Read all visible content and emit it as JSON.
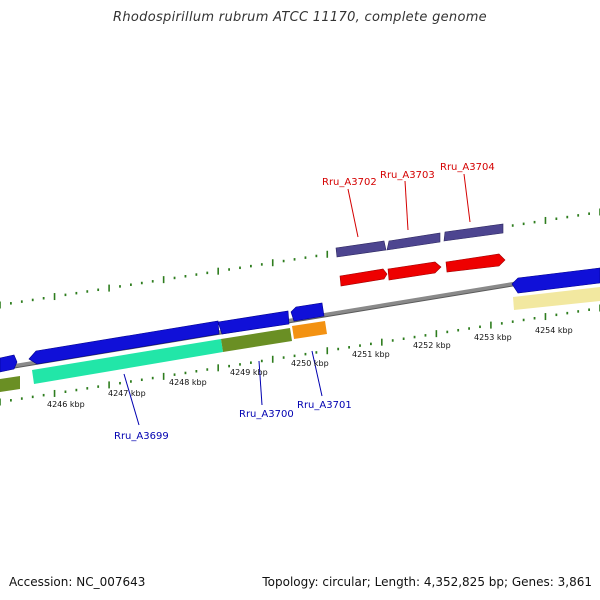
{
  "title": "Rhodospirillum rubrum ATCC 11170, complete genome",
  "footer": {
    "accession": "Accession: NC_007643",
    "topology": "Topology: circular; Length: 4,352,825 bp; Genes: 3,861"
  },
  "colors": {
    "backbone": "#8a8a8a",
    "tick": "#2e7d1e",
    "gene_blue": "#1010d8",
    "gene_red": "#ee0000",
    "gene_purple": "#4d4590",
    "label_red": "#d40000",
    "label_blue": "#0000b0",
    "bar_teal": "#22e6a8",
    "bar_olive": "#6a8f24",
    "bar_orange": "#f39212",
    "bar_cream": "#f2e8a0"
  },
  "kbp_labels": [
    "4246 kbp",
    "4247 kbp",
    "4248 kbp",
    "4249 kbp",
    "4250 kbp",
    "4251 kbp",
    "4252 kbp",
    "4253 kbp",
    "4254 kbp"
  ],
  "gene_labels": {
    "top": [
      "Rru_A3702",
      "Rru_A3703",
      "Rru_A3704"
    ],
    "bottom": [
      "Rru_A3699",
      "Rru_A3700",
      "Rru_A3701"
    ]
  }
}
